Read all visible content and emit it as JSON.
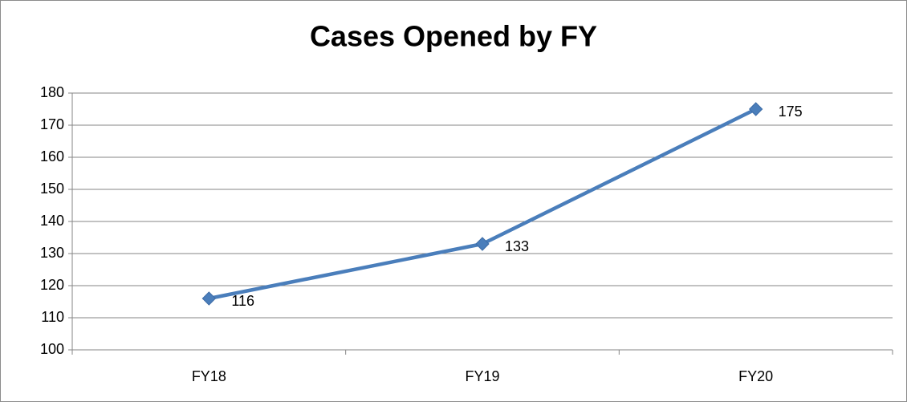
{
  "chart_data": {
    "type": "line",
    "title": "Cases Opened by FY",
    "categories": [
      "FY18",
      "FY19",
      "FY20"
    ],
    "values": [
      116,
      133,
      175
    ],
    "color": "#4a7ebb",
    "ylim": [
      100,
      180
    ],
    "yticks": [
      100,
      110,
      120,
      130,
      140,
      150,
      160,
      170,
      180
    ],
    "grid": true
  }
}
